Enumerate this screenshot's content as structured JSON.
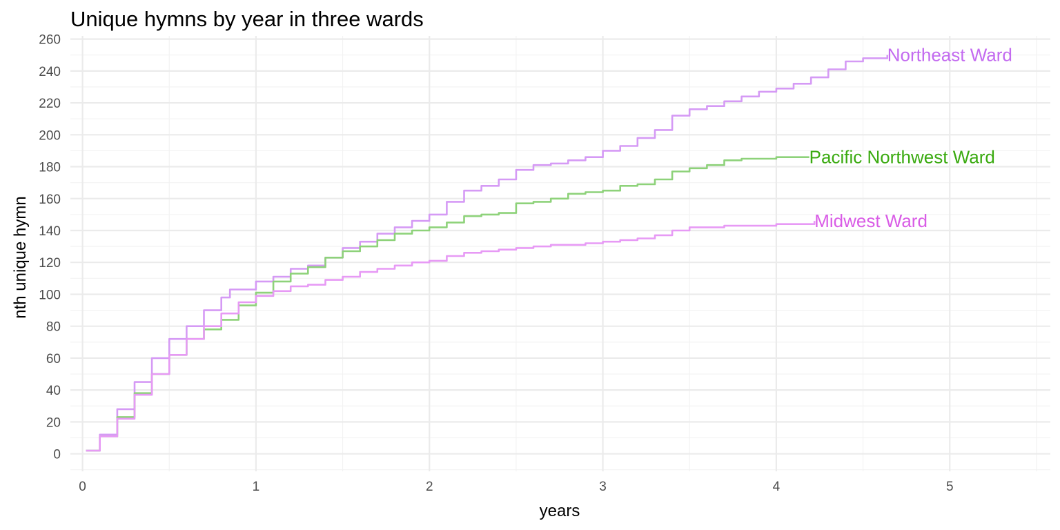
{
  "chart_data": {
    "type": "line",
    "title": "Unique hymns by year in three wards",
    "xlabel": "years",
    "ylabel": "nth unique hymn",
    "xlim": [
      -0.07,
      5.58
    ],
    "ylim": [
      -11,
      262
    ],
    "x_ticks": [
      0,
      1,
      2,
      3,
      4,
      5
    ],
    "y_ticks": [
      0,
      20,
      40,
      60,
      80,
      100,
      120,
      140,
      160,
      180,
      200,
      220,
      240,
      260
    ],
    "grid": true,
    "legend": "direct labels at line ends",
    "series": [
      {
        "name": "Northeast Ward",
        "color": "#d59af5",
        "label_color": "#c36bf0",
        "points": [
          [
            0.02,
            2
          ],
          [
            0.1,
            12
          ],
          [
            0.2,
            28
          ],
          [
            0.3,
            45
          ],
          [
            0.4,
            60
          ],
          [
            0.5,
            72
          ],
          [
            0.6,
            80
          ],
          [
            0.7,
            90
          ],
          [
            0.8,
            98
          ],
          [
            0.85,
            103
          ],
          [
            1.0,
            108
          ],
          [
            1.1,
            111
          ],
          [
            1.2,
            116
          ],
          [
            1.3,
            118
          ],
          [
            1.4,
            123
          ],
          [
            1.5,
            129
          ],
          [
            1.6,
            133
          ],
          [
            1.7,
            138
          ],
          [
            1.8,
            142
          ],
          [
            1.9,
            146
          ],
          [
            2.0,
            150
          ],
          [
            2.1,
            158
          ],
          [
            2.2,
            165
          ],
          [
            2.3,
            168
          ],
          [
            2.4,
            172
          ],
          [
            2.5,
            178
          ],
          [
            2.6,
            181
          ],
          [
            2.7,
            182
          ],
          [
            2.8,
            184
          ],
          [
            2.9,
            186
          ],
          [
            3.0,
            190
          ],
          [
            3.1,
            193
          ],
          [
            3.2,
            198
          ],
          [
            3.3,
            203
          ],
          [
            3.4,
            212
          ],
          [
            3.5,
            216
          ],
          [
            3.6,
            218
          ],
          [
            3.7,
            221
          ],
          [
            3.8,
            224
          ],
          [
            3.9,
            227
          ],
          [
            4.0,
            229
          ],
          [
            4.1,
            232
          ],
          [
            4.2,
            236
          ],
          [
            4.3,
            241
          ],
          [
            4.4,
            246
          ],
          [
            4.5,
            248
          ],
          [
            4.64,
            250
          ]
        ]
      },
      {
        "name": "Pacific Northwest Ward",
        "color": "#8ed27a",
        "label_color": "#3aaa10",
        "points": [
          [
            0.02,
            2
          ],
          [
            0.1,
            11
          ],
          [
            0.2,
            23
          ],
          [
            0.3,
            38
          ],
          [
            0.4,
            50
          ],
          [
            0.5,
            62
          ],
          [
            0.6,
            72
          ],
          [
            0.7,
            78
          ],
          [
            0.8,
            84
          ],
          [
            0.9,
            93
          ],
          [
            1.0,
            101
          ],
          [
            1.1,
            108
          ],
          [
            1.2,
            113
          ],
          [
            1.3,
            117
          ],
          [
            1.4,
            123
          ],
          [
            1.5,
            127
          ],
          [
            1.6,
            130
          ],
          [
            1.7,
            134
          ],
          [
            1.8,
            138
          ],
          [
            1.9,
            140
          ],
          [
            2.0,
            142
          ],
          [
            2.1,
            145
          ],
          [
            2.2,
            149
          ],
          [
            2.3,
            150
          ],
          [
            2.4,
            151
          ],
          [
            2.5,
            157
          ],
          [
            2.6,
            158
          ],
          [
            2.7,
            160
          ],
          [
            2.8,
            163
          ],
          [
            2.9,
            164
          ],
          [
            3.0,
            165
          ],
          [
            3.1,
            168
          ],
          [
            3.2,
            169
          ],
          [
            3.3,
            172
          ],
          [
            3.4,
            177
          ],
          [
            3.5,
            179
          ],
          [
            3.6,
            181
          ],
          [
            3.7,
            184
          ],
          [
            3.8,
            185
          ],
          [
            3.9,
            185
          ],
          [
            4.0,
            186
          ],
          [
            4.19,
            186
          ]
        ]
      },
      {
        "name": "Midwest Ward",
        "color": "#e79af5",
        "label_color": "#d95ce6",
        "points": [
          [
            0.02,
            2
          ],
          [
            0.1,
            11
          ],
          [
            0.2,
            22
          ],
          [
            0.3,
            37
          ],
          [
            0.4,
            50
          ],
          [
            0.5,
            62
          ],
          [
            0.6,
            72
          ],
          [
            0.7,
            80
          ],
          [
            0.8,
            88
          ],
          [
            0.9,
            95
          ],
          [
            1.0,
            99
          ],
          [
            1.1,
            102
          ],
          [
            1.2,
            105
          ],
          [
            1.3,
            106
          ],
          [
            1.4,
            109
          ],
          [
            1.5,
            111
          ],
          [
            1.6,
            114
          ],
          [
            1.7,
            116
          ],
          [
            1.8,
            118
          ],
          [
            1.9,
            120
          ],
          [
            2.0,
            121
          ],
          [
            2.1,
            124
          ],
          [
            2.2,
            126
          ],
          [
            2.3,
            127
          ],
          [
            2.4,
            128
          ],
          [
            2.5,
            129
          ],
          [
            2.6,
            130
          ],
          [
            2.7,
            131
          ],
          [
            2.8,
            131
          ],
          [
            2.9,
            132
          ],
          [
            3.0,
            133
          ],
          [
            3.1,
            134
          ],
          [
            3.2,
            135
          ],
          [
            3.3,
            137
          ],
          [
            3.4,
            140
          ],
          [
            3.5,
            142
          ],
          [
            3.6,
            142
          ],
          [
            3.7,
            143
          ],
          [
            3.8,
            143
          ],
          [
            3.9,
            143
          ],
          [
            4.0,
            144
          ],
          [
            4.1,
            144
          ],
          [
            4.22,
            146
          ]
        ]
      }
    ]
  }
}
